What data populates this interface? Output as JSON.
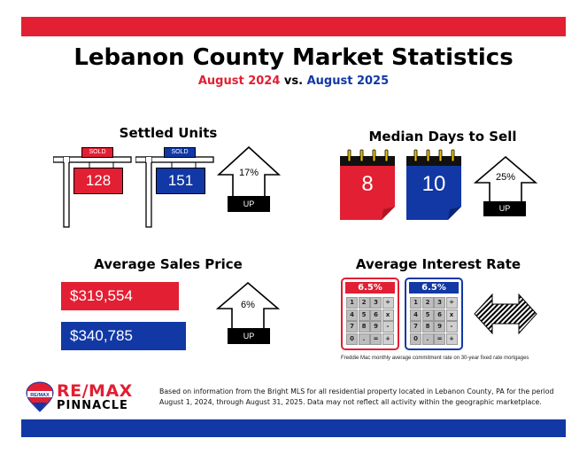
{
  "header": {
    "title": "Lebanon County Market Statistics",
    "period_a": "August 2024",
    "vs": "vs.",
    "period_b": "August 2025"
  },
  "colors": {
    "red": "#e21f33",
    "blue": "#1138a5"
  },
  "settled_units": {
    "title": "Settled Units",
    "sold_label": "SOLD",
    "value_2024": "128",
    "value_2025": "151",
    "change": "17%",
    "direction": "UP"
  },
  "median_days": {
    "title": "Median Days to Sell",
    "value_2024": "8",
    "value_2025": "10",
    "change": "25%",
    "direction": "UP"
  },
  "avg_price": {
    "title": "Average Sales Price",
    "value_2024": "$319,554",
    "value_2025": "$340,785",
    "change": "6%",
    "direction": "UP"
  },
  "interest_rate": {
    "title": "Average Interest Rate",
    "value_2024": "6.5%",
    "value_2025": "6.5%",
    "footnote": "Freddie Mac monthly average commitment rate on 30-year fixed rate mortgages"
  },
  "calculator_keys": [
    "1",
    "2",
    "3",
    "÷",
    "4",
    "5",
    "6",
    "x",
    "7",
    "8",
    "9",
    "-",
    "0",
    ".",
    "=",
    "+"
  ],
  "footer": {
    "logo_badge": "RE/MAX",
    "brand_line1": "RE/MAX",
    "brand_line2": "PINNACLE",
    "source_line1": "Based on information from the Bright MLS for all residential property located in Lebanon County, PA for the period",
    "source_line2": "August 1, 2024, through August 31, 2025.  Data may not reflect all activity within the geographic marketplace."
  }
}
